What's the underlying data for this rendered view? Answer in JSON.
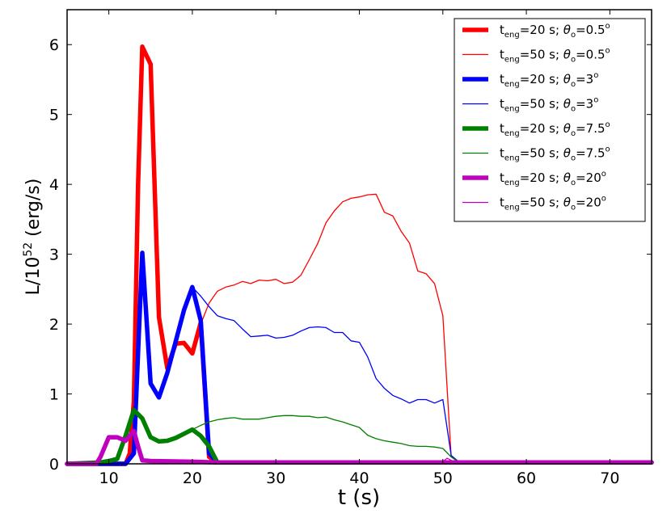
{
  "chart_data": {
    "type": "line",
    "xlabel": "t (s)",
    "ylabel_prefix": "L/10",
    "ylabel_exp": "52",
    "ylabel_suffix": " (erg/s)",
    "xlim": [
      5,
      75
    ],
    "ylim": [
      0,
      6.5
    ],
    "xticks": [
      10,
      20,
      30,
      40,
      50,
      60,
      70
    ],
    "yticks": [
      0,
      1,
      2,
      3,
      4,
      5,
      6
    ],
    "grid": false,
    "legend_position": "top-right",
    "series": [
      {
        "name": "t_eng=20 s; θ_o=0.5^o",
        "legend": {
          "t": "t",
          "sub1": "eng",
          "mid": "=20 s; ",
          "theta": "θ",
          "sub2": "o",
          "val": "=0.5",
          "sup": "o"
        },
        "color": "#ff0000",
        "width": "thick",
        "x": [
          5,
          12,
          12.5,
          13,
          13.5,
          14,
          15,
          16,
          17,
          18,
          19,
          20,
          21,
          22,
          23,
          75
        ],
        "y": [
          0,
          0,
          0.15,
          0.9,
          4.0,
          5.97,
          5.72,
          2.1,
          1.37,
          1.72,
          1.73,
          1.58,
          2.02,
          0.1,
          0.02,
          0.02
        ]
      },
      {
        "name": "t_eng=50 s; θ_o=0.5^o",
        "legend": {
          "t": "t",
          "sub1": "eng",
          "mid": "=50 s; ",
          "theta": "θ",
          "sub2": "o",
          "val": "=0.5",
          "sup": "o"
        },
        "color": "#ff0000",
        "width": "thin",
        "x": [
          20,
          21,
          22,
          23,
          24,
          25,
          26,
          27,
          28,
          29,
          30,
          31,
          32,
          33,
          34,
          35,
          36,
          37,
          38,
          39,
          40,
          41,
          42,
          43,
          44,
          45,
          46,
          47,
          48,
          49,
          50,
          51,
          52
        ],
        "y": [
          1.6,
          2.0,
          2.3,
          2.47,
          2.53,
          2.56,
          2.61,
          2.58,
          2.63,
          2.62,
          2.64,
          2.58,
          2.6,
          2.7,
          2.92,
          3.15,
          3.45,
          3.62,
          3.75,
          3.8,
          3.82,
          3.85,
          3.86,
          3.6,
          3.55,
          3.33,
          3.16,
          2.76,
          2.72,
          2.58,
          2.12,
          0.1,
          0.02
        ]
      },
      {
        "name": "t_eng=20 s; θ_o=3^o",
        "legend": {
          "t": "t",
          "sub1": "eng",
          "mid": "=20 s; ",
          "theta": "θ",
          "sub2": "o",
          "val": "=3",
          "sup": "o"
        },
        "color": "#0000ff",
        "width": "thick",
        "x": [
          5,
          12,
          13,
          13.5,
          14,
          15,
          16,
          17,
          18,
          19,
          20,
          21,
          22,
          23,
          75
        ],
        "y": [
          0,
          0,
          0.15,
          1.6,
          3.02,
          1.15,
          0.95,
          1.3,
          1.75,
          2.2,
          2.53,
          2.05,
          0.15,
          0.02,
          0.02
        ]
      },
      {
        "name": "t_eng=50 s; θ_o=3^o",
        "legend": {
          "t": "t",
          "sub1": "eng",
          "mid": "=50 s; ",
          "theta": "θ",
          "sub2": "o",
          "val": "=3",
          "sup": "o"
        },
        "color": "#0000ff",
        "width": "thin",
        "x": [
          20,
          21,
          22,
          23,
          24,
          25,
          26,
          27,
          28,
          29,
          30,
          31,
          32,
          33,
          34,
          35,
          36,
          37,
          38,
          39,
          40,
          41,
          42,
          43,
          44,
          45,
          46,
          47,
          48,
          49,
          50,
          51,
          52
        ],
        "y": [
          2.53,
          2.4,
          2.25,
          2.12,
          2.08,
          2.05,
          1.93,
          1.82,
          1.83,
          1.84,
          1.8,
          1.81,
          1.84,
          1.9,
          1.95,
          1.96,
          1.95,
          1.88,
          1.88,
          1.76,
          1.74,
          1.53,
          1.22,
          1.08,
          0.98,
          0.93,
          0.87,
          0.92,
          0.92,
          0.87,
          0.92,
          0.12,
          0.02
        ]
      },
      {
        "name": "t_eng=20 s; θ_o=7.5^o",
        "legend": {
          "t": "t",
          "sub1": "eng",
          "mid": "=20 s; ",
          "theta": "θ",
          "sub2": "o",
          "val": "=7.5",
          "sup": "o"
        },
        "color": "#008000",
        "width": "thick",
        "x": [
          5,
          9,
          10,
          11,
          12,
          13,
          14,
          15,
          16,
          17,
          18,
          19,
          20,
          21,
          22,
          23,
          75
        ],
        "y": [
          0,
          0.02,
          0.04,
          0.07,
          0.4,
          0.77,
          0.65,
          0.38,
          0.32,
          0.33,
          0.37,
          0.43,
          0.49,
          0.4,
          0.25,
          0.02,
          0.02
        ]
      },
      {
        "name": "t_eng=50 s; θ_o=7.5^o",
        "legend": {
          "t": "t",
          "sub1": "eng",
          "mid": "=50 s; ",
          "theta": "θ",
          "sub2": "o",
          "val": "=7.5",
          "sup": "o"
        },
        "color": "#008000",
        "width": "thin",
        "x": [
          20,
          21,
          22,
          23,
          24,
          25,
          26,
          27,
          28,
          29,
          30,
          31,
          32,
          33,
          34,
          35,
          36,
          37,
          38,
          39,
          40,
          41,
          42,
          43,
          44,
          45,
          46,
          47,
          48,
          49,
          50,
          51,
          52
        ],
        "y": [
          0.49,
          0.55,
          0.6,
          0.63,
          0.65,
          0.66,
          0.64,
          0.64,
          0.64,
          0.66,
          0.68,
          0.69,
          0.69,
          0.68,
          0.68,
          0.66,
          0.67,
          0.63,
          0.6,
          0.56,
          0.52,
          0.41,
          0.36,
          0.33,
          0.31,
          0.29,
          0.26,
          0.25,
          0.25,
          0.24,
          0.22,
          0.1,
          0.02
        ]
      },
      {
        "name": "t_eng=20 s; θ_o=20^o",
        "legend": {
          "t": "t",
          "sub1": "eng",
          "mid": "=20 s; ",
          "theta": "θ",
          "sub2": "o",
          "val": "=20",
          "sup": "o"
        },
        "color": "#bf00bf",
        "width": "thick",
        "x": [
          5,
          8.5,
          9,
          10,
          11,
          12,
          12.5,
          13,
          13.5,
          14,
          15,
          20,
          23,
          75
        ],
        "y": [
          0,
          0,
          0.1,
          0.38,
          0.38,
          0.33,
          0.4,
          0.47,
          0.25,
          0.05,
          0.04,
          0.03,
          0.02,
          0.02
        ]
      },
      {
        "name": "t_eng=50 s; θ_o=20^o",
        "legend": {
          "t": "t",
          "sub1": "eng",
          "mid": "=50 s; ",
          "theta": "θ",
          "sub2": "o",
          "val": "=20",
          "sup": "o"
        },
        "color": "#bf00bf",
        "width": "thin",
        "x": [
          20,
          25,
          30,
          35,
          40,
          45,
          50,
          50.5,
          51,
          52
        ],
        "y": [
          0.03,
          0.03,
          0.04,
          0.04,
          0.04,
          0.03,
          0.03,
          0.08,
          0.05,
          0.02
        ]
      }
    ]
  }
}
